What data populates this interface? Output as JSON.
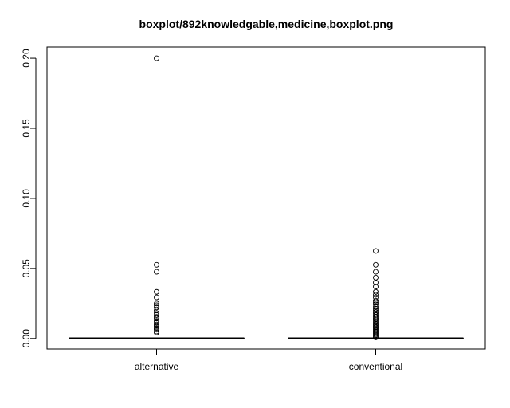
{
  "chart_data": {
    "type": "boxplot",
    "title": "boxplot/892knowledgable,medicine,boxplot.png",
    "xlabel": "",
    "ylabel": "",
    "categories": [
      "alternative",
      "conventional"
    ],
    "ylim": [
      -0.0075,
      0.208
    ],
    "yticks": [
      0.0,
      0.05,
      0.1,
      0.15,
      0.2
    ],
    "ytick_labels": [
      "0.00",
      "0.05",
      "0.10",
      "0.15",
      "0.20"
    ],
    "grid": false,
    "boxes": [
      {
        "name": "alternative",
        "min": 0,
        "q1": 0,
        "median": 0,
        "q3": 0,
        "max": 0,
        "outliers": [
          0.2,
          0.0526,
          0.0476,
          0.0333,
          0.0294,
          0.025,
          0.0238,
          0.0222,
          0.02,
          0.0182,
          0.0167,
          0.0154,
          0.0143,
          0.0125,
          0.0111,
          0.01,
          0.0091,
          0.0083,
          0.0071,
          0.0063,
          0.005,
          0.0042
        ]
      },
      {
        "name": "conventional",
        "min": 0,
        "q1": 0,
        "median": 0,
        "q3": 0,
        "max": 0,
        "outliers": [
          0.0625,
          0.0526,
          0.0476,
          0.0435,
          0.04,
          0.037,
          0.0333,
          0.0312,
          0.0294,
          0.027,
          0.0256,
          0.0244,
          0.0227,
          0.0213,
          0.02,
          0.0189,
          0.0179,
          0.0167,
          0.0156,
          0.0145,
          0.0137,
          0.0125,
          0.0115,
          0.0105,
          0.0097,
          0.0088,
          0.008,
          0.0072,
          0.0064,
          0.0056,
          0.0048,
          0.004,
          0.0032,
          0.0024,
          0.0016,
          0.0008
        ]
      }
    ]
  }
}
